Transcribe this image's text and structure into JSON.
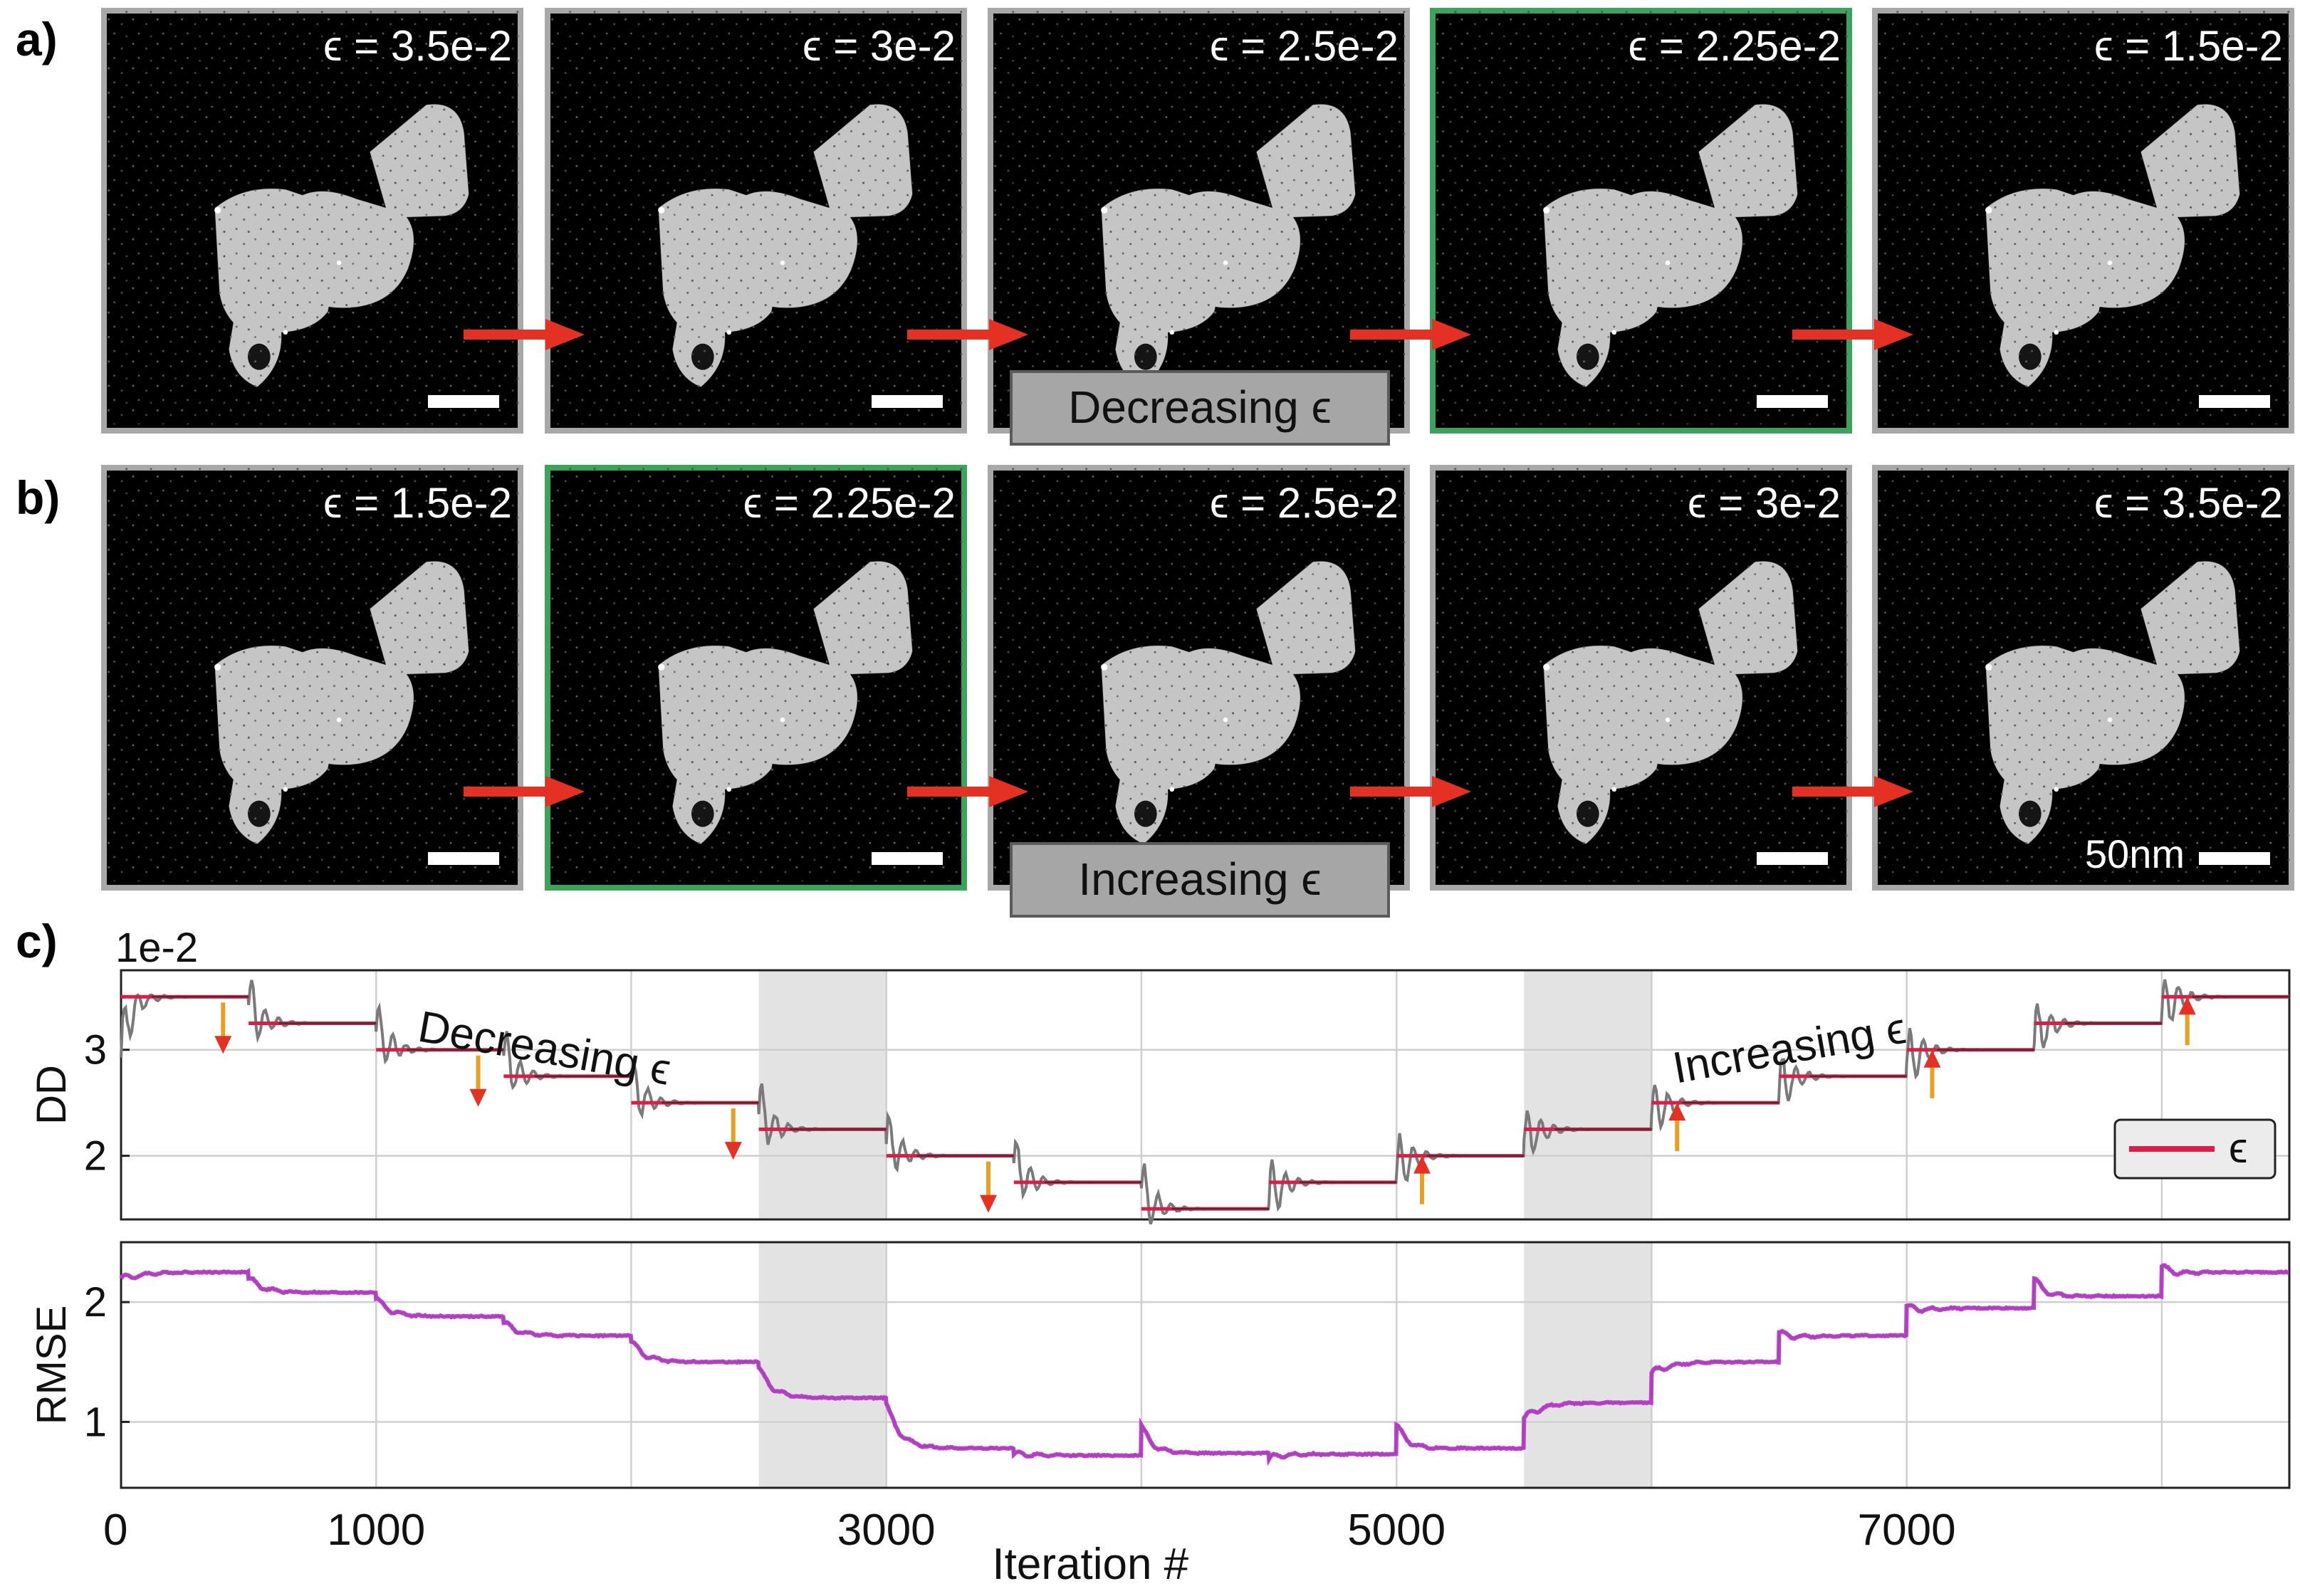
{
  "panel_labels": {
    "a": "a)",
    "b": "b)",
    "c": "c)"
  },
  "row_a": {
    "epsilons": [
      "3.5e-2",
      "3e-2",
      "2.5e-2",
      "2.25e-2",
      "1.5e-2"
    ],
    "caption": "Decreasing ϵ",
    "highlight_index": 3
  },
  "row_b": {
    "epsilons": [
      "1.5e-2",
      "2.25e-2",
      "2.5e-2",
      "3e-2",
      "3.5e-2"
    ],
    "caption": "Increasing ϵ",
    "highlight_index": 1,
    "scale_bar_label": "50nm"
  },
  "epsilon_symbol": "ϵ",
  "epsilon_prefix": "ϵ = ",
  "colors": {
    "arrow": "#e53124",
    "epsilon_line": "#d6204a",
    "dd_trace": "#7a7a7a",
    "rmse_trace": "#c23bd6",
    "shaded": "#e3e3e3",
    "highlight_border": "#3aa55a",
    "frame_border": "#a8a8a8",
    "caption_box": "#a6a6a6"
  },
  "chart_data": [
    {
      "type": "line",
      "name": "DD",
      "ylabel": "DD",
      "exponent_label": "1e-2",
      "ylim": [
        1.4,
        3.75
      ],
      "yticks": [
        2,
        3
      ],
      "xlim": [
        0,
        8500
      ],
      "grid": true,
      "legend": {
        "entries": [
          "ϵ"
        ],
        "placement": "bottom-right"
      },
      "shaded_x": [
        [
          2500,
          3000
        ],
        [
          5500,
          6000
        ]
      ],
      "annotations": [
        "Decreasing ϵ",
        "Increasing ϵ"
      ],
      "epsilon_steps": [
        {
          "x0": 0,
          "x1": 500,
          "y": 3.5
        },
        {
          "x0": 500,
          "x1": 1000,
          "y": 3.25
        },
        {
          "x0": 1000,
          "x1": 1500,
          "y": 3.0
        },
        {
          "x0": 1500,
          "x1": 2000,
          "y": 2.75
        },
        {
          "x0": 2000,
          "x1": 2500,
          "y": 2.5
        },
        {
          "x0": 2500,
          "x1": 3000,
          "y": 2.25
        },
        {
          "x0": 3000,
          "x1": 3500,
          "y": 2.0
        },
        {
          "x0": 3500,
          "x1": 4000,
          "y": 1.75
        },
        {
          "x0": 4000,
          "x1": 4500,
          "y": 1.5
        },
        {
          "x0": 4500,
          "x1": 5000,
          "y": 1.75
        },
        {
          "x0": 5000,
          "x1": 5500,
          "y": 2.0
        },
        {
          "x0": 5500,
          "x1": 6000,
          "y": 2.25
        },
        {
          "x0": 6000,
          "x1": 6500,
          "y": 2.5
        },
        {
          "x0": 6500,
          "x1": 7000,
          "y": 2.75
        },
        {
          "x0": 7000,
          "x1": 7500,
          "y": 3.0
        },
        {
          "x0": 7500,
          "x1": 8000,
          "y": 3.25
        },
        {
          "x0": 8000,
          "x1": 8500,
          "y": 3.5
        }
      ],
      "arrows": [
        {
          "x": 400,
          "dir": "down"
        },
        {
          "x": 1400,
          "dir": "down"
        },
        {
          "x": 2400,
          "dir": "down"
        },
        {
          "x": 3400,
          "dir": "down"
        },
        {
          "x": 5100,
          "dir": "up"
        },
        {
          "x": 6100,
          "dir": "up"
        },
        {
          "x": 7100,
          "dir": "up"
        },
        {
          "x": 8100,
          "dir": "up"
        }
      ]
    },
    {
      "type": "line",
      "name": "RMSE",
      "ylabel": "RMSE",
      "xlabel": "Iteration #",
      "ylim": [
        0.45,
        2.5
      ],
      "yticks": [
        1,
        2
      ],
      "xlim": [
        0,
        8500
      ],
      "xticks": [
        0,
        1000,
        3000,
        5000,
        7000
      ],
      "grid": true,
      "shaded_x": [
        [
          2500,
          3000
        ],
        [
          5500,
          6000
        ]
      ],
      "segment_levels": [
        {
          "x0": 0,
          "x1": 500,
          "y": 2.25
        },
        {
          "x0": 500,
          "x1": 1000,
          "y": 2.08
        },
        {
          "x0": 1000,
          "x1": 1500,
          "y": 1.88
        },
        {
          "x0": 1500,
          "x1": 2000,
          "y": 1.72
        },
        {
          "x0": 2000,
          "x1": 2500,
          "y": 1.5
        },
        {
          "x0": 2500,
          "x1": 3000,
          "y": 1.2
        },
        {
          "x0": 3000,
          "x1": 3500,
          "y": 0.78
        },
        {
          "x0": 3500,
          "x1": 4000,
          "y": 0.72
        },
        {
          "x0": 4000,
          "x1": 4500,
          "y": 0.74
        },
        {
          "x0": 4500,
          "x1": 5000,
          "y": 0.73
        },
        {
          "x0": 5000,
          "x1": 5500,
          "y": 0.78
        },
        {
          "x0": 5500,
          "x1": 6000,
          "y": 1.16
        },
        {
          "x0": 6000,
          "x1": 6500,
          "y": 1.5
        },
        {
          "x0": 6500,
          "x1": 7000,
          "y": 1.72
        },
        {
          "x0": 7000,
          "x1": 7500,
          "y": 1.95
        },
        {
          "x0": 7500,
          "x1": 8000,
          "y": 2.05
        },
        {
          "x0": 8000,
          "x1": 8500,
          "y": 2.25
        }
      ]
    }
  ]
}
